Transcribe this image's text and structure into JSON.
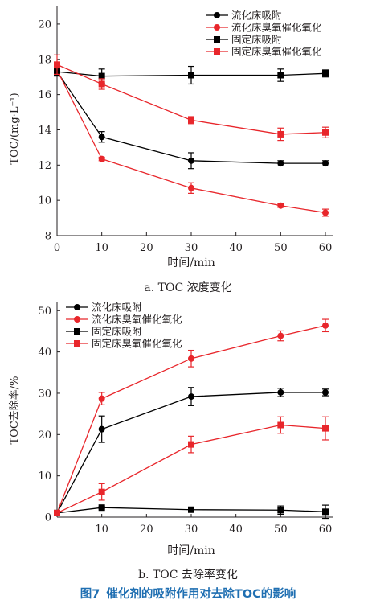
{
  "chart_data": [
    {
      "type": "line",
      "xlabel": "时间/min",
      "ylabel": "TOC/(mg·L⁻¹)",
      "x_ticks": [
        0,
        10,
        20,
        30,
        40,
        50,
        60
      ],
      "y_ticks": [
        8,
        10,
        12,
        14,
        16,
        18,
        20
      ],
      "xlim": [
        0,
        60
      ],
      "ylim": [
        8,
        21
      ],
      "legend_position": "top-right",
      "series": [
        {
          "name": "流化床吸附",
          "color": "#000000",
          "marker": "circle",
          "x": [
            0,
            10,
            30,
            50,
            60
          ],
          "y": [
            17.3,
            13.6,
            12.25,
            12.1,
            12.1
          ],
          "err": [
            0.2,
            0.3,
            0.45,
            0.15,
            0.15
          ]
        },
        {
          "name": "流化床臭氧催化氧化",
          "color": "#e8262b",
          "marker": "circle",
          "x": [
            0,
            10,
            30,
            50,
            60
          ],
          "y": [
            17.4,
            12.35,
            10.7,
            9.7,
            9.3
          ],
          "err": [
            0.2,
            0.1,
            0.3,
            0.1,
            0.2
          ]
        },
        {
          "name": "固定床吸附",
          "color": "#000000",
          "marker": "square",
          "x": [
            0,
            10,
            30,
            50,
            60
          ],
          "y": [
            17.3,
            17.05,
            17.1,
            17.1,
            17.2
          ],
          "err": [
            0.25,
            0.4,
            0.5,
            0.35,
            0.2
          ]
        },
        {
          "name": "固定床臭氧催化氧化",
          "color": "#e8262b",
          "marker": "square",
          "x": [
            0,
            10,
            30,
            50,
            60
          ],
          "y": [
            17.7,
            16.6,
            14.55,
            13.75,
            13.85
          ],
          "err": [
            0.55,
            0.3,
            0.2,
            0.35,
            0.3
          ]
        }
      ]
    },
    {
      "type": "line",
      "xlabel": "时间/min",
      "ylabel": "TOC去除率/%",
      "x_ticks": [
        10,
        20,
        30,
        40,
        50,
        60
      ],
      "y_ticks": [
        0,
        10,
        20,
        30,
        40,
        50
      ],
      "xlim": [
        0,
        60
      ],
      "ylim": [
        0,
        52
      ],
      "legend_position": "top-left",
      "series": [
        {
          "name": "流化床吸附",
          "color": "#000000",
          "marker": "circle",
          "x": [
            0,
            10,
            30,
            50,
            60
          ],
          "y": [
            1,
            21.3,
            29.2,
            30.2,
            30.2
          ],
          "err": [
            0,
            3.2,
            2.2,
            1.0,
            0.8
          ]
        },
        {
          "name": "流化床臭氧催化氧化",
          "color": "#e8262b",
          "marker": "circle",
          "x": [
            0,
            10,
            30,
            50,
            60
          ],
          "y": [
            1,
            28.7,
            38.4,
            43.9,
            46.4
          ],
          "err": [
            0,
            1.5,
            2.0,
            1.2,
            1.5
          ]
        },
        {
          "name": "固定床吸附",
          "color": "#000000",
          "marker": "square",
          "x": [
            0,
            10,
            30,
            50,
            60
          ],
          "y": [
            1,
            2.3,
            1.8,
            1.7,
            1.3
          ],
          "err": [
            0,
            0.3,
            0.3,
            1.0,
            1.6
          ]
        },
        {
          "name": "固定床臭氧催化氧化",
          "color": "#e8262b",
          "marker": "square",
          "x": [
            0,
            10,
            30,
            50,
            60
          ],
          "y": [
            1,
            6.1,
            17.6,
            22.3,
            21.5
          ],
          "err": [
            0,
            2.0,
            2.0,
            2.0,
            2.8
          ]
        }
      ]
    }
  ],
  "captions": {
    "a": "a. TOC 浓度变化",
    "b": "b. TOC 去除率变化",
    "figure_number": "图7",
    "figure_title": "催化剂的吸附作用对去除TOC的影响"
  }
}
